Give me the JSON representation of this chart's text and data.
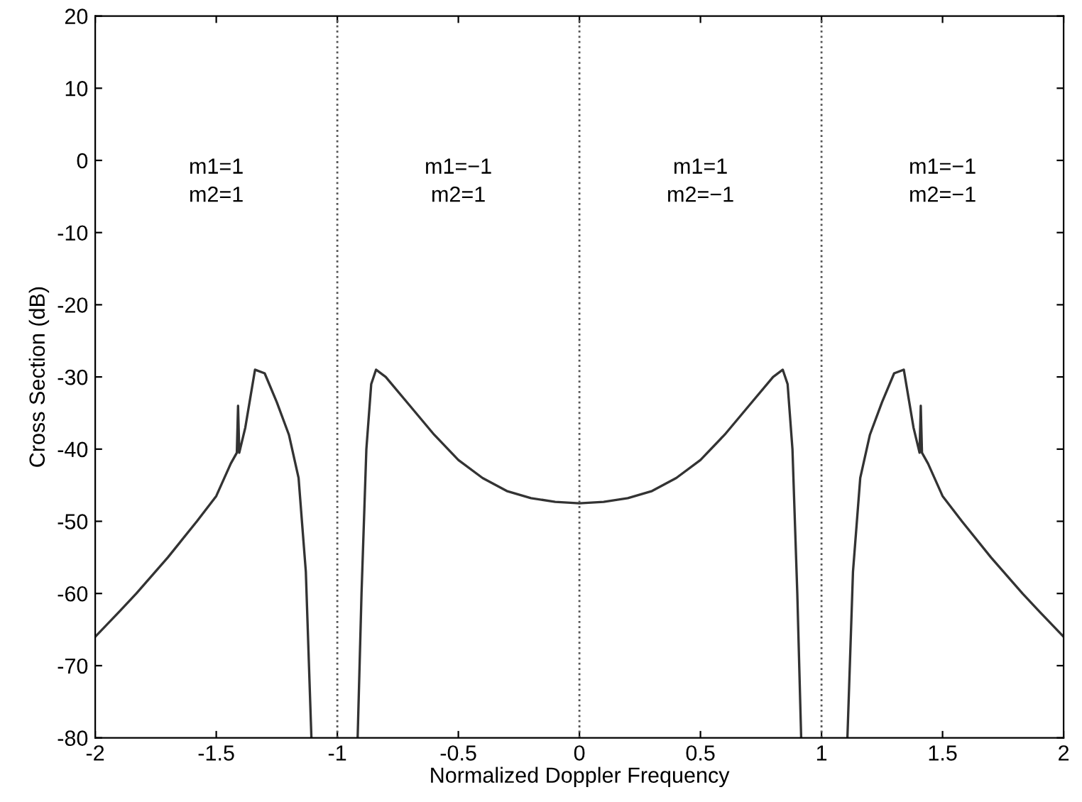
{
  "chart_data": {
    "type": "line",
    "xlabel": "Normalized Doppler Frequency",
    "ylabel": "Cross Section (dB)",
    "series": [
      {
        "color": "#333333",
        "x": [
          -2,
          -1.9,
          -1.83,
          -1.7,
          -1.58,
          -1.5,
          -1.44,
          -1.415,
          -1.41,
          -1.405,
          -1.38,
          -1.36,
          -1.34,
          -1.3,
          -1.25,
          -1.2,
          -1.16,
          -1.13,
          -1.107,
          -1.0,
          -0.916,
          -0.9,
          -0.88,
          -0.86,
          -0.84,
          -0.8,
          -0.7,
          -0.6,
          -0.5,
          -0.4,
          -0.3,
          -0.2,
          -0.1,
          0,
          0.1,
          0.2,
          0.3,
          0.4,
          0.5,
          0.6,
          0.7,
          0.8,
          0.84,
          0.86,
          0.88,
          0.9,
          0.916,
          1.0,
          1.107,
          1.13,
          1.16,
          1.2,
          1.25,
          1.3,
          1.34,
          1.36,
          1.38,
          1.405,
          1.41,
          1.415,
          1.44,
          1.5,
          1.58,
          1.7,
          1.83,
          1.9,
          2
        ],
        "values": [
          -66,
          -62.5,
          -60,
          -55,
          -50,
          -46.5,
          -42,
          -40.5,
          -34,
          -40.5,
          -37,
          -33,
          -29,
          -29.5,
          -33.5,
          -38,
          -44,
          -57,
          -80,
          null,
          -80,
          -60,
          -40,
          -31,
          -29,
          -30,
          -34,
          -38,
          -41.5,
          -44,
          -45.8,
          -46.8,
          -47.3,
          -47.5,
          -47.3,
          -46.8,
          -45.8,
          -44,
          -41.5,
          -38,
          -34,
          -30,
          -29,
          -31,
          -40,
          -60,
          -80,
          null,
          -80,
          -57,
          -44,
          -38,
          -33.5,
          -29.5,
          -29,
          -33,
          -37,
          -40.5,
          -34,
          -40.5,
          -42,
          -46.5,
          -50,
          -55,
          -60,
          -62.5,
          -66
        ]
      }
    ],
    "xlim": [
      -2,
      2
    ],
    "ylim": [
      -80,
      20
    ],
    "xticks": [
      -2,
      -1.5,
      -1,
      -0.5,
      0,
      0.5,
      1,
      1.5,
      2
    ],
    "yticks": [
      -80,
      -70,
      -60,
      -50,
      -40,
      -30,
      -20,
      -10,
      0,
      10,
      20
    ],
    "ref_lines": [
      {
        "axis": "x",
        "value": -1,
        "line_style": "dotted",
        "color": "#555555"
      },
      {
        "axis": "x",
        "value": 0,
        "line_style": "dotted",
        "color": "#555555"
      },
      {
        "axis": "x",
        "value": 1,
        "line_style": "dotted",
        "color": "#555555"
      }
    ],
    "annotations": [
      "m1=1\nm2=1",
      "m1=−1\nm2=1",
      "m1=1\nm2=−1",
      "m1=−1\nm2=−1"
    ],
    "grid": false,
    "legend": false,
    "line_style": "solid",
    "marker": "none"
  }
}
